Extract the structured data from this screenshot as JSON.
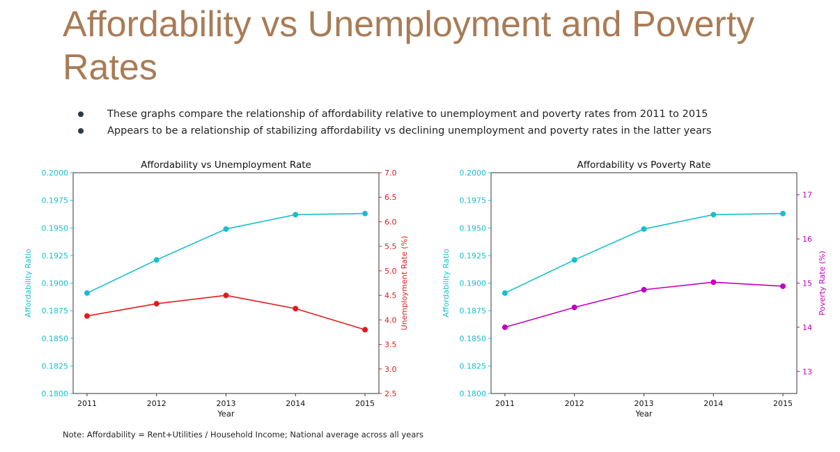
{
  "slide": {
    "title": "Affordability vs Unemployment and Poverty Rates",
    "bullets": [
      "These graphs compare the relationship of affordability relative to unemployment and poverty rates from 2011 to 2015",
      "Appears to be a relationship of stabilizing affordability vs declining unemployment and poverty rates in the latter years"
    ],
    "note": "Note: Affordability = Rent+Utilities / Household Income; National average across all years"
  },
  "chart_data": [
    {
      "type": "line",
      "title": "Affordability vs Unemployment Rate",
      "xlabel": "Year",
      "x": [
        2011,
        2012,
        2013,
        2014,
        2015
      ],
      "y_left": {
        "label": "Affordability Ratio",
        "color": "#17becf",
        "lim": [
          0.18,
          0.2
        ],
        "ticks": [
          "0.1800",
          "0.1825",
          "0.1850",
          "0.1875",
          "0.1900",
          "0.1925",
          "0.1950",
          "0.1975",
          "0.2000"
        ],
        "values": [
          0.1891,
          0.1921,
          0.1949,
          0.1962,
          0.1963
        ]
      },
      "y_right": {
        "label": "Unemployment Rate (%)",
        "color": "#e31a1c",
        "lim": [
          2.5,
          7.0
        ],
        "ticks": [
          "2.5",
          "3.0",
          "3.5",
          "4.0",
          "4.5",
          "5.0",
          "5.5",
          "6.0",
          "6.5",
          "7.0"
        ],
        "values": [
          4.08,
          4.33,
          4.5,
          4.23,
          3.8
        ]
      },
      "grid": false
    },
    {
      "type": "line",
      "title": "Affordability vs Poverty Rate",
      "xlabel": "Year",
      "x": [
        2011,
        2012,
        2013,
        2014,
        2015
      ],
      "y_left": {
        "label": "Affordability Ratio",
        "color": "#17becf",
        "lim": [
          0.18,
          0.2
        ],
        "ticks": [
          "0.1800",
          "0.1825",
          "0.1850",
          "0.1875",
          "0.1900",
          "0.1925",
          "0.1950",
          "0.1975",
          "0.2000"
        ],
        "values": [
          0.1891,
          0.1921,
          0.1949,
          0.1962,
          0.1963
        ]
      },
      "y_right": {
        "label": "Poverty Rate (%)",
        "color": "#bf00bf",
        "lim": [
          12.5,
          17.5
        ],
        "ticks": [
          "13",
          "14",
          "15",
          "16",
          "17"
        ],
        "values": [
          14.0,
          14.45,
          14.85,
          15.02,
          14.93
        ]
      },
      "grid": false
    }
  ]
}
